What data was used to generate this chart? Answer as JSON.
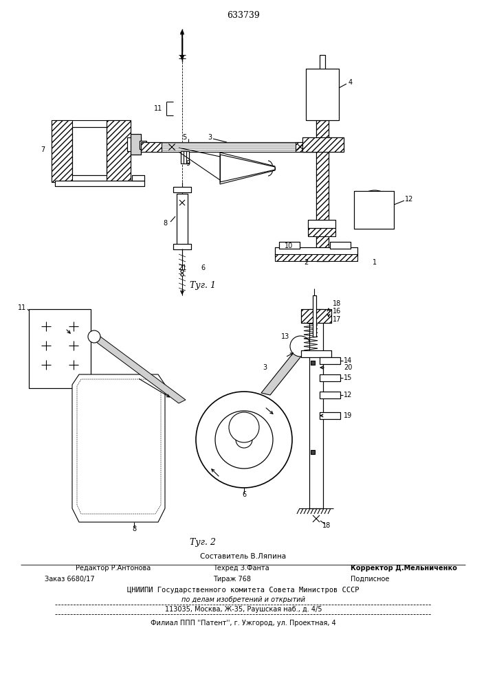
{
  "patent_number": "633739",
  "fig1_caption": "Τуг. 1",
  "fig2_caption": "Τуг. 2",
  "footer_составитель": "Составитель В.Ляпина",
  "footer_редактор": "Редактор Р.Антонова",
  "footer_техред": "Техред З.Фанта",
  "footer_корректор": "Корректор Д.Мельниченко",
  "footer_заказ": "Заказ 6680/17",
  "footer_тираж": "Тираж 768",
  "footer_подписное": "Подписное",
  "footer_цниипи": "ЦНИИПИ Государственного комитета Совета Министров СССР",
  "footer_поделам": "по делам изобретений и открытий",
  "footer_адрес": "113035, Москва, Ж-35, Раушская наб., д. 4/5",
  "footer_филиал": "Филиал ППП ''Патент'', г. Ужгород, ул. Проектная, 4",
  "bg_color": "#ffffff",
  "lc": "#000000"
}
